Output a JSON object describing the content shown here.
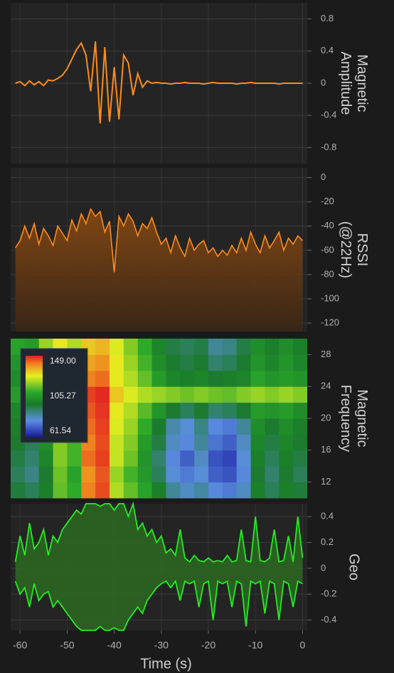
{
  "chart_data": [
    {
      "type": "line",
      "ylabel": [
        "Magnetic",
        "Amplitude"
      ],
      "color": "#ff8c1a",
      "grid": true,
      "xlim": [
        -62,
        1
      ],
      "ylim": [
        -1,
        1
      ],
      "yticks": [
        0.8,
        0.4,
        0,
        -0.4,
        -0.8
      ],
      "x": [
        -61,
        -60,
        -59,
        -58,
        -57,
        -56,
        -55,
        -54,
        -53,
        -52,
        -51,
        -50,
        -49,
        -48,
        -47,
        -46,
        -45,
        -44,
        -43,
        -42,
        -41,
        -40,
        -39,
        -38,
        -37,
        -36,
        -35,
        -34,
        -33,
        -32,
        -31,
        -30,
        -29,
        -28,
        -27,
        -26,
        -25,
        -24,
        -23,
        -22,
        -21,
        -20,
        -19,
        -18,
        -17,
        -16,
        -15,
        -14,
        -13,
        -12,
        -11,
        -10,
        -9,
        -8,
        -7,
        -6,
        -5,
        -4,
        -3,
        -2,
        -1,
        0
      ],
      "values": [
        0,
        0.02,
        -0.03,
        0.03,
        -0.02,
        0.02,
        -0.03,
        0.04,
        0.03,
        0.06,
        0.1,
        0.18,
        0.3,
        0.42,
        0.5,
        0.35,
        -0.1,
        0.52,
        -0.5,
        0.45,
        -0.48,
        0.2,
        -0.45,
        0.35,
        0.25,
        -0.15,
        0.12,
        -0.05,
        0.03,
        0,
        0.01,
        0,
        0,
        -0.01,
        0,
        0,
        0.01,
        0,
        0,
        0,
        -0.01,
        0,
        0.01,
        0,
        0,
        0,
        0,
        -0.01,
        0,
        0,
        0.01,
        0,
        0,
        0,
        0,
        0,
        -0.01,
        0,
        0,
        0,
        0,
        0
      ]
    },
    {
      "type": "area",
      "ylabel": [
        "RSSI",
        "(@22Hz)"
      ],
      "color": "#ff8c1a",
      "grid": true,
      "xlim": [
        -62,
        1
      ],
      "ylim": [
        -127,
        8
      ],
      "yticks": [
        0,
        -20,
        -40,
        -60,
        -80,
        -100,
        -120
      ],
      "x": [
        -61,
        -60,
        -59,
        -58,
        -57,
        -56,
        -55,
        -54,
        -53,
        -52,
        -51,
        -50,
        -49,
        -48,
        -47,
        -46,
        -45,
        -44,
        -43,
        -42,
        -41,
        -40,
        -39,
        -38,
        -37,
        -36,
        -35,
        -34,
        -33,
        -32,
        -31,
        -30,
        -29,
        -28,
        -27,
        -26,
        -25,
        -24,
        -23,
        -22,
        -21,
        -20,
        -19,
        -18,
        -17,
        -16,
        -15,
        -14,
        -13,
        -12,
        -11,
        -10,
        -9,
        -8,
        -7,
        -6,
        -5,
        -4,
        -3,
        -2,
        -1,
        0
      ],
      "values": [
        -58,
        -52,
        -40,
        -50,
        -38,
        -55,
        -42,
        -48,
        -56,
        -40,
        -46,
        -52,
        -35,
        -44,
        -30,
        -38,
        -26,
        -32,
        -28,
        -45,
        -36,
        -78,
        -32,
        -40,
        -30,
        -36,
        -48,
        -38,
        -42,
        -33,
        -45,
        -55,
        -50,
        -62,
        -48,
        -58,
        -65,
        -50,
        -60,
        -55,
        -52,
        -62,
        -58,
        -65,
        -60,
        -64,
        -56,
        -62,
        -50,
        -60,
        -45,
        -55,
        -62,
        -48,
        -58,
        -52,
        -45,
        -60,
        -50,
        -55,
        -48,
        -52
      ]
    },
    {
      "type": "heatmap",
      "ylabel": [
        "Magnetic",
        "Frequency"
      ],
      "grid": true,
      "xlim": [
        -62,
        1
      ],
      "ylim": [
        10,
        30
      ],
      "yticks": [
        28,
        24,
        20,
        16,
        12
      ],
      "zlim": [
        61.54,
        149
      ],
      "colorbar_ticks": [
        {
          "value": 149,
          "label": "149.00"
        },
        105.27,
        61.54
      ],
      "x": [
        -60.5,
        -57.5,
        -54.5,
        -51.5,
        -48.5,
        -45.5,
        -42.5,
        -39.5,
        -36.5,
        -33.5,
        -30.5,
        -27.5,
        -24.5,
        -21.5,
        -18.5,
        -15.5,
        -12.5,
        -9.5,
        -6.5,
        -3.5,
        -0.5
      ],
      "y": [
        11,
        13,
        15,
        17,
        19,
        21,
        23,
        25,
        27,
        29
      ],
      "z": [
        [
          95,
          92,
          98,
          115,
          110,
          140,
          145,
          122,
          115,
          108,
          98,
          86,
          82,
          85,
          78,
          76,
          82,
          98,
          92,
          98,
          95
        ],
        [
          92,
          88,
          96,
          116,
          108,
          138,
          144,
          120,
          112,
          105,
          92,
          80,
          76,
          80,
          72,
          70,
          78,
          96,
          90,
          96,
          92
        ],
        [
          94,
          90,
          100,
          118,
          112,
          142,
          146,
          124,
          116,
          104,
          90,
          78,
          72,
          82,
          70,
          68,
          80,
          98,
          92,
          98,
          94
        ],
        [
          96,
          92,
          102,
          118,
          112,
          140,
          145,
          124,
          118,
          106,
          94,
          82,
          78,
          86,
          75,
          72,
          82,
          100,
          94,
          100,
          96
        ],
        [
          98,
          94,
          104,
          120,
          114,
          142,
          146,
          126,
          120,
          110,
          96,
          84,
          80,
          88,
          78,
          76,
          86,
          102,
          96,
          102,
          98
        ],
        [
          100,
          96,
          108,
          122,
          116,
          144,
          147,
          128,
          122,
          114,
          104,
          96,
          92,
          96,
          90,
          92,
          96,
          106,
          104,
          106,
          102
        ],
        [
          106,
          104,
          112,
          124,
          118,
          146,
          148,
          132,
          126,
          122,
          120,
          118,
          116,
          118,
          116,
          115,
          118,
          120,
          118,
          120,
          118
        ],
        [
          102,
          100,
          112,
          124,
          118,
          140,
          142,
          128,
          122,
          115,
          106,
          100,
          98,
          100,
          96,
          98,
          100,
          108,
          104,
          106,
          104
        ],
        [
          104,
          102,
          116,
          126,
          120,
          136,
          138,
          128,
          120,
          112,
          102,
          96,
          94,
          96,
          90,
          92,
          96,
          104,
          100,
          104,
          100
        ],
        [
          108,
          106,
          120,
          128,
          122,
          132,
          134,
          126,
          118,
          110,
          100,
          94,
          92,
          94,
          86,
          88,
          94,
          102,
          98,
          102,
          98
        ]
      ]
    },
    {
      "type": "band",
      "ylabel": [
        "Geo"
      ],
      "grid": true,
      "xlabel": "Time (s)",
      "xlim": [
        -62,
        1
      ],
      "ylim": [
        -0.48,
        0.5
      ],
      "yticks": [
        0.4,
        0.2,
        0,
        -0.2,
        -0.4
      ],
      "xticks": [
        -60,
        -50,
        -40,
        -30,
        -20,
        -10,
        0
      ],
      "x": [
        -61,
        -60,
        -59,
        -58,
        -57,
        -56,
        -55,
        -54,
        -53,
        -52,
        -51,
        -50,
        -49,
        -48,
        -47,
        -46,
        -45,
        -44,
        -43,
        -42,
        -41,
        -40,
        -39,
        -38,
        -37,
        -36,
        -35,
        -34,
        -33,
        -32,
        -31,
        -30,
        -29,
        -28,
        -27,
        -26,
        -25,
        -24,
        -23,
        -22,
        -21,
        -20,
        -19,
        -18,
        -17,
        -16,
        -15,
        -14,
        -13,
        -12,
        -11,
        -10,
        -9,
        -8,
        -7,
        -6,
        -5,
        -4,
        -3,
        -2,
        -1,
        0
      ],
      "series": [
        {
          "color": "#22ee22",
          "values": [
            0.05,
            0.25,
            0.1,
            0.35,
            0.15,
            0.2,
            0.3,
            0.1,
            0.25,
            0.2,
            0.3,
            0.35,
            0.4,
            0.45,
            0.42,
            0.5,
            0.5,
            0.5,
            0.48,
            0.5,
            0.5,
            0.45,
            0.5,
            0.5,
            0.4,
            0.5,
            0.3,
            0.35,
            0.25,
            0.3,
            0.2,
            0.25,
            0.12,
            0.15,
            0.1,
            0.3,
            0.08,
            0.05,
            0.1,
            0.06,
            0.05,
            0.08,
            0.05,
            0.06,
            0.05,
            0.1,
            0.05,
            0.06,
            0.3,
            0.06,
            0.05,
            0.4,
            0.06,
            0.05,
            0.08,
            0.3,
            0.05,
            0.06,
            0.25,
            0.05,
            0.4,
            0.08
          ]
        },
        {
          "color": "#22ee22",
          "values": [
            -0.1,
            -0.2,
            -0.15,
            -0.3,
            -0.12,
            -0.25,
            -0.2,
            -0.18,
            -0.3,
            -0.25,
            -0.3,
            -0.35,
            -0.4,
            -0.45,
            -0.48,
            -0.48,
            -0.48,
            -0.48,
            -0.45,
            -0.48,
            -0.48,
            -0.46,
            -0.48,
            -0.48,
            -0.4,
            -0.35,
            -0.3,
            -0.35,
            -0.25,
            -0.2,
            -0.15,
            -0.12,
            -0.1,
            -0.15,
            -0.1,
            -0.25,
            -0.1,
            -0.12,
            -0.1,
            -0.3,
            -0.12,
            -0.1,
            -0.4,
            -0.1,
            -0.12,
            -0.1,
            -0.3,
            -0.1,
            -0.12,
            -0.45,
            -0.1,
            -0.12,
            -0.1,
            -0.35,
            -0.1,
            -0.12,
            -0.4,
            -0.1,
            -0.12,
            -0.3,
            -0.1,
            -0.12
          ]
        }
      ]
    }
  ]
}
